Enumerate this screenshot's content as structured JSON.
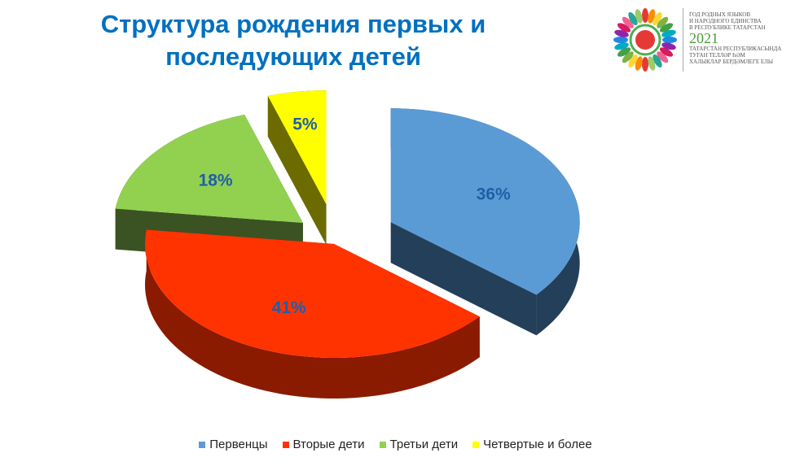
{
  "chart_data": {
    "type": "pie",
    "title": "Структура рождения первых и последующих детей",
    "categories": [
      "Первенцы",
      "Вторые дети",
      "Третьи дети",
      "Четвертые и более"
    ],
    "values": [
      36,
      41,
      18,
      5
    ],
    "labels": [
      "36%",
      "41%",
      "18%",
      "5%"
    ],
    "colors": [
      "#5b9bd5",
      "#ff3300",
      "#92d050",
      "#ffff00"
    ],
    "side_colors": [
      "#243f5a",
      "#8a1a00",
      "#3b5223",
      "#6b6b00"
    ],
    "exploded": [
      true,
      false,
      true,
      true
    ],
    "label_color": "#1f5fa8",
    "legend_position": "bottom"
  },
  "logo": {
    "lines_top": [
      "ГОД РОДНЫХ ЯЗЫКОВ",
      "И НАРОДНОГО ЕДИНСТВА",
      "В РЕСПУБЛИКЕ ТАТАРСТАН"
    ],
    "year": "2021",
    "lines_bottom": [
      "ТАТАРСТАН РЕСПУБЛИКАСЫНДА",
      "ТУГАН ТЕЛЛӘР ҺӘМ",
      "ХАЛЫКЛАР БЕРДӘМЛЕГЕ ЕЛЫ"
    ]
  }
}
